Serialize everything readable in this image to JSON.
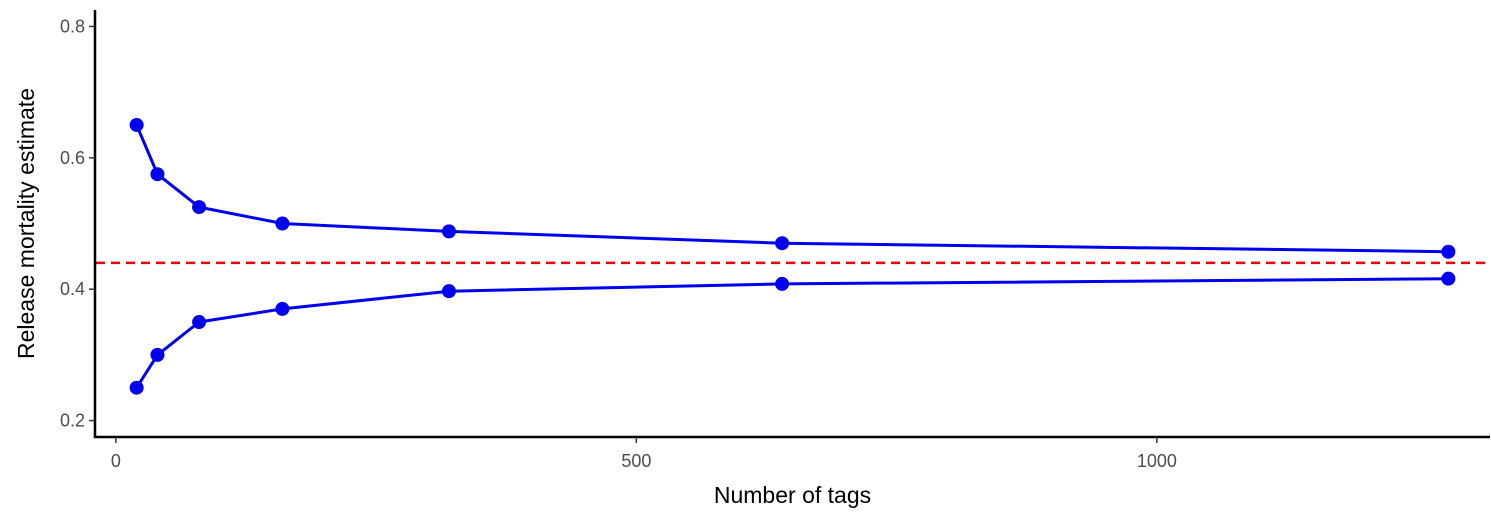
{
  "chart_data": {
    "type": "line",
    "title": "",
    "xlabel": "Number of tags",
    "ylabel": "Release mortality estimate",
    "xlim": [
      -20,
      1320
    ],
    "ylim": [
      0.175,
      0.825
    ],
    "x_ticks": [
      0,
      500,
      1000
    ],
    "x_tick_labels": [
      "0",
      "500",
      "1000"
    ],
    "y_ticks": [
      0.2,
      0.4,
      0.6,
      0.8
    ],
    "y_tick_labels": [
      "0.2",
      "0.4",
      "0.6",
      "0.8"
    ],
    "grid": false,
    "legend": "none",
    "series_color": "#0000ee",
    "reference_line": {
      "y": 0.44,
      "color": "#ee0000",
      "style": "dashed"
    },
    "series": [
      {
        "x": [
          20,
          40,
          80,
          160,
          320,
          640,
          1280
        ],
        "values": [
          0.65,
          0.575,
          0.525,
          0.5,
          0.488,
          0.47,
          0.457
        ]
      },
      {
        "x": [
          20,
          40,
          80,
          160,
          320,
          640,
          1280
        ],
        "values": [
          0.25,
          0.3,
          0.35,
          0.37,
          0.397,
          0.408,
          0.416
        ]
      }
    ]
  }
}
